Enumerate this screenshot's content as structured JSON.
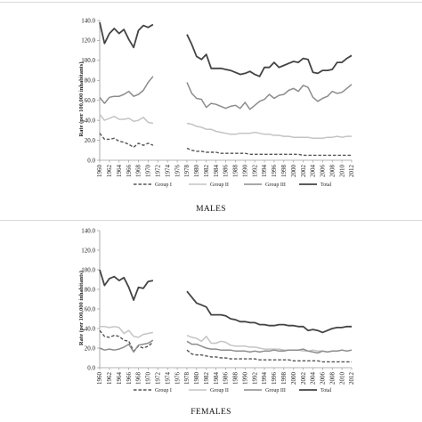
{
  "chart_data": [
    {
      "type": "line",
      "caption": "MALES",
      "ylabel": "Rate (per 100,000 inhabitants)",
      "ylim": [
        0,
        140
      ],
      "y_ticks": [
        "0.0",
        "20.0",
        "40.0",
        "60.0",
        "80.0",
        "100.0",
        "120.0",
        "140.0"
      ],
      "x_ticks": [
        "1960",
        "1962",
        "1964",
        "1966",
        "1968",
        "1970",
        "1972",
        "1974",
        "1976",
        "1978",
        "1980",
        "1982",
        "1984",
        "1986",
        "1988",
        "1990",
        "1992",
        "1994",
        "1996",
        "1998",
        "2000",
        "2002",
        "2004",
        "2006",
        "2008",
        "2010",
        "2012"
      ],
      "x": [
        1960,
        1961,
        1962,
        1963,
        1964,
        1965,
        1966,
        1967,
        1968,
        1969,
        1970,
        1971,
        1972,
        1973,
        1974,
        1975,
        1976,
        1977,
        1978,
        1979,
        1980,
        1981,
        1982,
        1983,
        1984,
        1985,
        1986,
        1987,
        1988,
        1989,
        1990,
        1991,
        1992,
        1993,
        1994,
        1995,
        1996,
        1997,
        1998,
        1999,
        2000,
        2001,
        2002,
        2003,
        2004,
        2005,
        2006,
        2007,
        2008,
        2009,
        2010,
        2011,
        2012
      ],
      "legend": "bottom",
      "series": [
        {
          "name": "Group I",
          "style": "dashed",
          "color": "#555555",
          "values": [
            27,
            21,
            21,
            22,
            19,
            18,
            16,
            13,
            17,
            15,
            17,
            15,
            null,
            null,
            null,
            null,
            null,
            null,
            12,
            10,
            9,
            9,
            8,
            8,
            8,
            7,
            7,
            7,
            7,
            7,
            7,
            6,
            6,
            6,
            6,
            6,
            6,
            6,
            6,
            6,
            6,
            6,
            5,
            5,
            5,
            5,
            5,
            5,
            5,
            5,
            5,
            5,
            5
          ]
        },
        {
          "name": "Group II",
          "style": "solid",
          "color": "#c4c4c4",
          "values": [
            46,
            40,
            42,
            44,
            41,
            41,
            42,
            39,
            40,
            43,
            38,
            37,
            null,
            null,
            null,
            null,
            null,
            null,
            37,
            36,
            34,
            33,
            31,
            31,
            29,
            28,
            27,
            26,
            26,
            27,
            27,
            27,
            28,
            27,
            26,
            26,
            25,
            25,
            24,
            24,
            23,
            23,
            23,
            23,
            22,
            22,
            22,
            23,
            23,
            24,
            23,
            24,
            24
          ]
        },
        {
          "name": "Group III",
          "style": "solid",
          "color": "#8c8c8c",
          "values": [
            63,
            57,
            63,
            64,
            64,
            66,
            69,
            64,
            66,
            70,
            78,
            84,
            null,
            null,
            null,
            null,
            null,
            null,
            78,
            67,
            62,
            61,
            53,
            57,
            56,
            54,
            52,
            54,
            55,
            52,
            58,
            51,
            55,
            59,
            61,
            66,
            62,
            65,
            66,
            70,
            72,
            69,
            75,
            73,
            63,
            59,
            62,
            64,
            69,
            67,
            68,
            72,
            76
          ]
        },
        {
          "name": "Total",
          "style": "solid",
          "color": "#444444",
          "values": [
            138,
            117,
            127,
            132,
            127,
            131,
            121,
            113,
            130,
            135,
            133,
            136,
            null,
            null,
            null,
            null,
            null,
            null,
            126,
            116,
            104,
            101,
            106,
            92,
            92,
            92,
            91,
            90,
            88,
            86,
            87,
            89,
            86,
            84,
            93,
            93,
            98,
            93,
            95,
            97,
            99,
            98,
            102,
            101,
            88,
            87,
            90,
            90,
            91,
            98,
            98,
            102,
            105
          ]
        }
      ]
    },
    {
      "type": "line",
      "caption": "FEMALES",
      "ylabel": "Rate (per 100,000 inhabitants)",
      "ylim": [
        0,
        140
      ],
      "y_ticks": [
        "0.0",
        "20.0",
        "40.0",
        "60.0",
        "80.0",
        "100.0",
        "120.0",
        "140.0"
      ],
      "x_ticks": [
        "1960",
        "1962",
        "1964",
        "1966",
        "1968",
        "1970",
        "1972",
        "1974",
        "1976",
        "1978",
        "1980",
        "1982",
        "1984",
        "1986",
        "1988",
        "1990",
        "1992",
        "1994",
        "1996",
        "1998",
        "2000",
        "2002",
        "2004",
        "2006",
        "2008",
        "2010",
        "2012"
      ],
      "x": [
        1960,
        1961,
        1962,
        1963,
        1964,
        1965,
        1966,
        1967,
        1968,
        1969,
        1970,
        1971,
        1972,
        1973,
        1974,
        1975,
        1976,
        1977,
        1978,
        1979,
        1980,
        1981,
        1982,
        1983,
        1984,
        1985,
        1986,
        1987,
        1988,
        1989,
        1990,
        1991,
        1992,
        1993,
        1994,
        1995,
        1996,
        1997,
        1998,
        1999,
        2000,
        2001,
        2002,
        2003,
        2004,
        2005,
        2006,
        2007,
        2008,
        2009,
        2010,
        2011,
        2012
      ],
      "legend": "bottom",
      "series": [
        {
          "name": "Group I",
          "style": "dashed",
          "color": "#555555",
          "values": [
            38,
            32,
            31,
            33,
            32,
            28,
            27,
            17,
            22,
            20,
            22,
            26,
            null,
            null,
            null,
            null,
            null,
            null,
            18,
            14,
            13,
            13,
            12,
            11,
            11,
            10,
            10,
            9,
            9,
            9,
            9,
            9,
            9,
            8,
            8,
            8,
            8,
            8,
            8,
            8,
            7,
            7,
            7,
            7,
            7,
            7,
            6,
            6,
            6,
            6,
            6,
            6,
            6
          ]
        },
        {
          "name": "Group II",
          "style": "solid",
          "color": "#c4c4c4",
          "values": [
            42,
            42,
            41,
            42,
            41,
            35,
            38,
            32,
            31,
            34,
            35,
            36,
            null,
            null,
            null,
            null,
            null,
            null,
            33,
            31,
            30,
            27,
            32,
            25,
            25,
            27,
            26,
            23,
            22,
            22,
            22,
            21,
            21,
            20,
            19,
            19,
            19,
            19,
            18,
            18,
            18,
            18,
            17,
            17,
            18,
            17,
            17,
            16,
            17,
            17,
            18,
            17,
            18
          ]
        },
        {
          "name": "Group III",
          "style": "solid",
          "color": "#8c8c8c",
          "values": [
            20,
            18,
            19,
            18,
            19,
            21,
            24,
            16,
            23,
            24,
            25,
            28,
            null,
            null,
            null,
            null,
            null,
            null,
            27,
            24,
            24,
            22,
            20,
            19,
            19,
            18,
            18,
            18,
            17,
            17,
            17,
            16,
            17,
            16,
            17,
            17,
            18,
            17,
            17,
            18,
            18,
            18,
            19,
            17,
            16,
            15,
            17,
            16,
            17,
            17,
            18,
            17,
            18
          ]
        },
        {
          "name": "Total",
          "style": "solid",
          "color": "#444444",
          "values": [
            100,
            84,
            91,
            93,
            89,
            92,
            82,
            69,
            82,
            81,
            88,
            89,
            null,
            null,
            null,
            null,
            null,
            null,
            78,
            72,
            66,
            64,
            62,
            54,
            54,
            54,
            53,
            50,
            49,
            47,
            47,
            46,
            46,
            44,
            44,
            43,
            43,
            44,
            44,
            43,
            43,
            42,
            42,
            38,
            39,
            38,
            36,
            38,
            40,
            41,
            41,
            42,
            42
          ]
        }
      ]
    }
  ]
}
